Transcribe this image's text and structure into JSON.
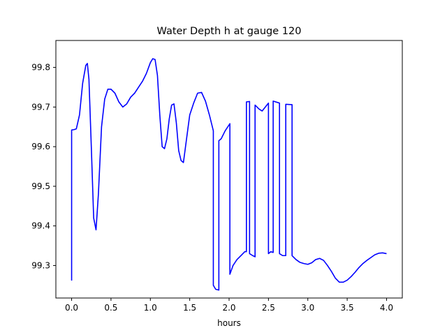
{
  "chart_data": {
    "type": "line",
    "title": "Water Depth h at gauge 120",
    "xlabel": "hours",
    "ylabel": "",
    "xlim": [
      -0.2,
      4.2
    ],
    "ylim": [
      99.218,
      99.868
    ],
    "xticks": [
      0.0,
      0.5,
      1.0,
      1.5,
      2.0,
      2.5,
      3.0,
      3.5,
      4.0
    ],
    "xtick_labels": [
      "0.0",
      "0.5",
      "1.0",
      "1.5",
      "2.0",
      "2.5",
      "3.0",
      "3.5",
      "4.0"
    ],
    "yticks": [
      99.3,
      99.4,
      99.5,
      99.6,
      99.7,
      99.8
    ],
    "ytick_labels": [
      "99.3",
      "99.4",
      "99.5",
      "99.6",
      "99.7",
      "99.8"
    ],
    "grid": false,
    "series": [
      {
        "color": "#0000ff",
        "x": [
          0.0,
          0.0,
          0.03,
          0.06,
          0.1,
          0.14,
          0.18,
          0.2,
          0.22,
          0.25,
          0.28,
          0.31,
          0.34,
          0.38,
          0.42,
          0.46,
          0.5,
          0.55,
          0.6,
          0.65,
          0.7,
          0.75,
          0.8,
          0.85,
          0.9,
          0.95,
          1.0,
          1.03,
          1.06,
          1.09,
          1.12,
          1.15,
          1.18,
          1.21,
          1.24,
          1.27,
          1.3,
          1.33,
          1.36,
          1.39,
          1.42,
          1.46,
          1.5,
          1.55,
          1.6,
          1.65,
          1.7,
          1.75,
          1.8,
          1.8,
          1.83,
          1.87,
          1.87,
          1.9,
          1.95,
          2.0,
          2.01,
          2.01,
          2.05,
          2.1,
          2.15,
          2.2,
          2.22,
          2.22,
          2.26,
          2.26,
          2.3,
          2.33,
          2.33,
          2.38,
          2.42,
          2.46,
          2.5,
          2.5,
          2.53,
          2.56,
          2.56,
          2.64,
          2.64,
          2.68,
          2.72,
          2.72,
          2.8,
          2.8,
          2.85,
          2.9,
          2.95,
          3.0,
          3.05,
          3.1,
          3.15,
          3.2,
          3.25,
          3.3,
          3.35,
          3.4,
          3.45,
          3.5,
          3.55,
          3.6,
          3.65,
          3.7,
          3.75,
          3.8,
          3.85,
          3.9,
          3.95,
          4.0
        ],
        "y": [
          99.262,
          99.642,
          99.643,
          99.645,
          99.68,
          99.76,
          99.805,
          99.81,
          99.77,
          99.6,
          99.42,
          99.39,
          99.48,
          99.65,
          99.72,
          99.745,
          99.745,
          99.735,
          99.713,
          99.7,
          99.708,
          99.725,
          99.735,
          99.75,
          99.765,
          99.785,
          99.812,
          99.822,
          99.82,
          99.78,
          99.68,
          99.6,
          99.595,
          99.62,
          99.67,
          99.705,
          99.708,
          99.66,
          99.59,
          99.565,
          99.56,
          99.62,
          99.68,
          99.71,
          99.735,
          99.737,
          99.715,
          99.68,
          99.64,
          99.25,
          99.24,
          99.238,
          99.615,
          99.62,
          99.64,
          99.655,
          99.658,
          99.278,
          99.3,
          99.315,
          99.325,
          99.335,
          99.335,
          99.713,
          99.714,
          99.33,
          99.325,
          99.322,
          99.705,
          99.695,
          99.69,
          99.7,
          99.71,
          99.33,
          99.335,
          99.333,
          99.715,
          99.71,
          99.33,
          99.325,
          99.325,
          99.707,
          99.706,
          99.325,
          99.315,
          99.308,
          99.305,
          99.303,
          99.307,
          99.315,
          99.318,
          99.313,
          99.3,
          99.285,
          99.268,
          99.258,
          99.258,
          99.263,
          99.272,
          99.283,
          99.295,
          99.305,
          99.313,
          99.32,
          99.327,
          99.331,
          99.332,
          99.33
        ]
      }
    ]
  }
}
